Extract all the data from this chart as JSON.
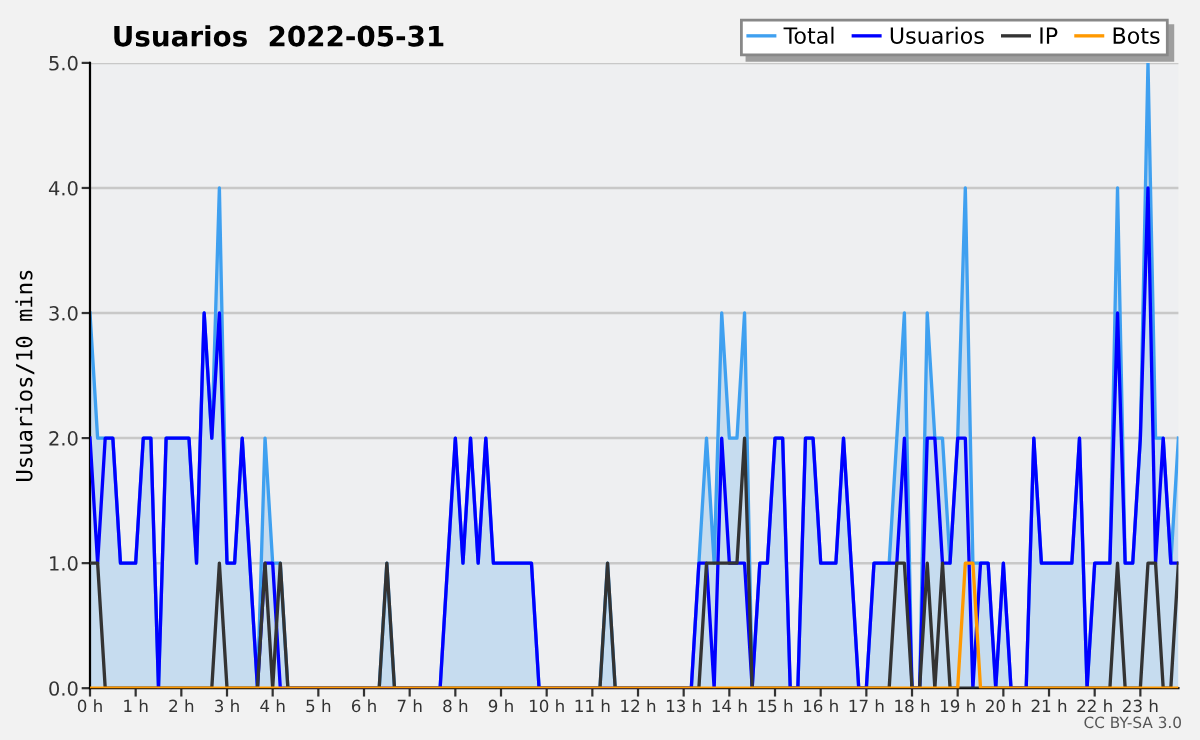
{
  "chart_data": {
    "type": "line",
    "title": "Usuarios  2022-05-31",
    "ylabel": "Usuarios/10 mins",
    "annotations": [
      "CC BY-SA 3.0"
    ],
    "x": [
      0,
      0.167,
      0.333,
      0.5,
      0.667,
      0.833,
      1,
      1.167,
      1.333,
      1.5,
      1.667,
      1.833,
      2,
      2.167,
      2.333,
      2.5,
      2.667,
      2.833,
      3,
      3.167,
      3.333,
      3.5,
      3.667,
      3.833,
      4,
      4.167,
      4.333,
      4.5,
      4.667,
      4.833,
      5,
      5.167,
      5.333,
      5.5,
      5.667,
      5.833,
      6,
      6.167,
      6.333,
      6.5,
      6.667,
      6.833,
      7,
      7.167,
      7.333,
      7.5,
      7.667,
      7.833,
      8,
      8.167,
      8.333,
      8.5,
      8.667,
      8.833,
      9,
      9.167,
      9.333,
      9.5,
      9.667,
      9.833,
      10,
      10.167,
      10.333,
      10.5,
      10.667,
      10.833,
      11,
      11.167,
      11.333,
      11.5,
      11.667,
      11.833,
      12,
      12.167,
      12.333,
      12.5,
      12.667,
      12.833,
      13,
      13.167,
      13.333,
      13.5,
      13.667,
      13.833,
      14,
      14.167,
      14.333,
      14.5,
      14.667,
      14.833,
      15,
      15.167,
      15.333,
      15.5,
      15.667,
      15.833,
      16,
      16.167,
      16.333,
      16.5,
      16.667,
      16.833,
      17,
      17.167,
      17.333,
      17.5,
      17.667,
      17.833,
      18,
      18.167,
      18.333,
      18.5,
      18.667,
      18.833,
      19,
      19.167,
      19.333,
      19.5,
      19.667,
      19.833,
      20,
      20.167,
      20.333,
      20.5,
      20.667,
      20.833,
      21,
      21.167,
      21.333,
      21.5,
      21.667,
      21.833,
      22,
      22.167,
      22.333,
      22.5,
      22.667,
      22.833,
      23,
      23.167,
      23.333,
      23.5,
      23.667,
      23.833
    ],
    "series": [
      {
        "name": "Total",
        "type": "area",
        "color": "#3fa0f0",
        "values": [
          3,
          2,
          2,
          2,
          1,
          1,
          1,
          2,
          2,
          0,
          2,
          2,
          2,
          2,
          1,
          3,
          2,
          4,
          1,
          1,
          2,
          1,
          0,
          2,
          1,
          1,
          0,
          0,
          0,
          0,
          0,
          0,
          0,
          0,
          0,
          0,
          0,
          0,
          0,
          1,
          0,
          0,
          0,
          0,
          0,
          0,
          0,
          1,
          2,
          1,
          2,
          1,
          2,
          1,
          1,
          1,
          1,
          1,
          1,
          0,
          0,
          0,
          0,
          0,
          0,
          0,
          0,
          0,
          1,
          0,
          0,
          0,
          0,
          0,
          0,
          0,
          0,
          0,
          0,
          0,
          1,
          2,
          1,
          3,
          2,
          2,
          3,
          0,
          1,
          1,
          2,
          2,
          0,
          0,
          2,
          2,
          1,
          1,
          1,
          2,
          1,
          0,
          0,
          1,
          1,
          1,
          2,
          3,
          0,
          0,
          3,
          2,
          2,
          1,
          2,
          4,
          1,
          1,
          1,
          0,
          1,
          0,
          0,
          0,
          2,
          1,
          1,
          1,
          1,
          1,
          2,
          0,
          1,
          1,
          1,
          4,
          1,
          1,
          2,
          5,
          2,
          2,
          1,
          2
        ]
      },
      {
        "name": "Usuarios",
        "color": "#0000ff",
        "values": [
          2,
          1,
          2,
          2,
          1,
          1,
          1,
          2,
          2,
          0,
          2,
          2,
          2,
          2,
          1,
          3,
          2,
          3,
          1,
          1,
          2,
          1,
          0,
          1,
          1,
          0,
          0,
          0,
          0,
          0,
          0,
          0,
          0,
          0,
          0,
          0,
          0,
          0,
          0,
          0,
          0,
          0,
          0,
          0,
          0,
          0,
          0,
          1,
          2,
          1,
          2,
          1,
          2,
          1,
          1,
          1,
          1,
          1,
          1,
          0,
          0,
          0,
          0,
          0,
          0,
          0,
          0,
          0,
          0,
          0,
          0,
          0,
          0,
          0,
          0,
          0,
          0,
          0,
          0,
          0,
          1,
          1,
          0,
          2,
          1,
          1,
          1,
          0,
          1,
          1,
          2,
          2,
          0,
          0,
          2,
          2,
          1,
          1,
          1,
          2,
          1,
          0,
          0,
          1,
          1,
          1,
          1,
          2,
          0,
          0,
          2,
          2,
          1,
          1,
          2,
          2,
          0,
          1,
          1,
          0,
          1,
          0,
          0,
          0,
          2,
          1,
          1,
          1,
          1,
          1,
          2,
          0,
          1,
          1,
          1,
          3,
          1,
          1,
          2,
          4,
          1,
          2,
          1,
          1
        ]
      },
      {
        "name": "IP",
        "color": "#333333",
        "values": [
          1,
          1,
          0,
          0,
          0,
          0,
          0,
          0,
          0,
          0,
          0,
          0,
          0,
          0,
          0,
          0,
          0,
          1,
          0,
          0,
          0,
          0,
          0,
          1,
          0,
          1,
          0,
          0,
          0,
          0,
          0,
          0,
          0,
          0,
          0,
          0,
          0,
          0,
          0,
          1,
          0,
          0,
          0,
          0,
          0,
          0,
          0,
          0,
          0,
          0,
          0,
          0,
          0,
          0,
          0,
          0,
          0,
          0,
          0,
          0,
          0,
          0,
          0,
          0,
          0,
          0,
          0,
          0,
          1,
          0,
          0,
          0,
          0,
          0,
          0,
          0,
          0,
          0,
          0,
          0,
          0,
          1,
          1,
          1,
          1,
          1,
          2,
          0,
          0,
          0,
          0,
          0,
          0,
          0,
          0,
          0,
          0,
          0,
          0,
          0,
          0,
          0,
          0,
          0,
          0,
          0,
          1,
          1,
          0,
          0,
          1,
          0,
          1,
          0,
          0,
          0,
          0,
          0,
          0,
          0,
          0,
          0,
          0,
          0,
          0,
          0,
          0,
          0,
          0,
          0,
          0,
          0,
          0,
          0,
          0,
          1,
          0,
          0,
          0,
          1,
          1,
          0,
          0,
          1
        ]
      },
      {
        "name": "Bots",
        "color": "#ff9900",
        "values": [
          0,
          0,
          0,
          0,
          0,
          0,
          0,
          0,
          0,
          0,
          0,
          0,
          0,
          0,
          0,
          0,
          0,
          0,
          0,
          0,
          0,
          0,
          0,
          0,
          0,
          0,
          0,
          0,
          0,
          0,
          0,
          0,
          0,
          0,
          0,
          0,
          0,
          0,
          0,
          0,
          0,
          0,
          0,
          0,
          0,
          0,
          0,
          0,
          0,
          0,
          0,
          0,
          0,
          0,
          0,
          0,
          0,
          0,
          0,
          0,
          0,
          0,
          0,
          0,
          0,
          0,
          0,
          0,
          0,
          0,
          0,
          0,
          0,
          0,
          0,
          0,
          0,
          0,
          0,
          0,
          0,
          0,
          0,
          0,
          0,
          0,
          0,
          0,
          0,
          0,
          0,
          0,
          0,
          0,
          0,
          0,
          0,
          0,
          0,
          0,
          0,
          0,
          0,
          0,
          0,
          0,
          0,
          0,
          0,
          0,
          0,
          0,
          0,
          0,
          0,
          1,
          1,
          0,
          0,
          0,
          0,
          0,
          0,
          0,
          0,
          0,
          0,
          0,
          0,
          0,
          0,
          0,
          0,
          0,
          0,
          0,
          0,
          0,
          0,
          0,
          0,
          0,
          0,
          0
        ]
      }
    ],
    "xlim": [
      0,
      23.833
    ],
    "xticks": [
      {
        "value": 0,
        "label": "0 h"
      },
      {
        "value": 1,
        "label": "1 h"
      },
      {
        "value": 2,
        "label": "2 h"
      },
      {
        "value": 3,
        "label": "3 h"
      },
      {
        "value": 4,
        "label": "4 h"
      },
      {
        "value": 5,
        "label": "5 h"
      },
      {
        "value": 6,
        "label": "6 h"
      },
      {
        "value": 7,
        "label": "7 h"
      },
      {
        "value": 8,
        "label": "8 h"
      },
      {
        "value": 9,
        "label": "9 h"
      },
      {
        "value": 10,
        "label": "10 h"
      },
      {
        "value": 11,
        "label": "11 h"
      },
      {
        "value": 12,
        "label": "12 h"
      },
      {
        "value": 13,
        "label": "13 h"
      },
      {
        "value": 14,
        "label": "14 h"
      },
      {
        "value": 15,
        "label": "15 h"
      },
      {
        "value": 16,
        "label": "16 h"
      },
      {
        "value": 17,
        "label": "17 h"
      },
      {
        "value": 18,
        "label": "18 h"
      },
      {
        "value": 19,
        "label": "19 h"
      },
      {
        "value": 20,
        "label": "20 h"
      },
      {
        "value": 21,
        "label": "21 h"
      },
      {
        "value": 22,
        "label": "22 h"
      },
      {
        "value": 23,
        "label": "23 h"
      }
    ],
    "ylim": [
      0,
      5
    ],
    "yticks": [
      {
        "value": 0,
        "label": "0.0"
      },
      {
        "value": 1,
        "label": "1.0"
      },
      {
        "value": 2,
        "label": "2.0"
      },
      {
        "value": 3,
        "label": "3.0"
      },
      {
        "value": 4,
        "label": "4.0"
      },
      {
        "value": 5,
        "label": "5.0"
      }
    ],
    "grid": "y",
    "legend": "top right",
    "marker": "none",
    "line_style": "solid"
  }
}
